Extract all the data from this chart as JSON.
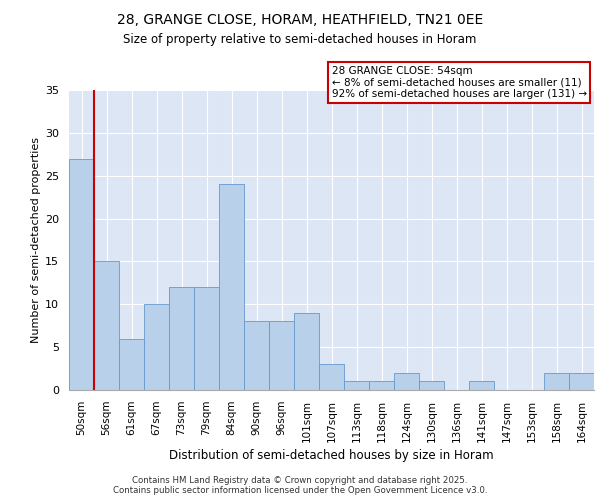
{
  "title1": "28, GRANGE CLOSE, HORAM, HEATHFIELD, TN21 0EE",
  "title2": "Size of property relative to semi-detached houses in Horam",
  "xlabel": "Distribution of semi-detached houses by size in Horam",
  "ylabel": "Number of semi-detached properties",
  "categories": [
    "50sqm",
    "56sqm",
    "61sqm",
    "67sqm",
    "73sqm",
    "79sqm",
    "84sqm",
    "90sqm",
    "96sqm",
    "101sqm",
    "107sqm",
    "113sqm",
    "118sqm",
    "124sqm",
    "130sqm",
    "136sqm",
    "141sqm",
    "147sqm",
    "153sqm",
    "158sqm",
    "164sqm"
  ],
  "values": [
    27,
    15,
    6,
    10,
    12,
    12,
    24,
    8,
    8,
    9,
    3,
    1,
    1,
    2,
    1,
    0,
    1,
    0,
    0,
    2,
    2
  ],
  "bar_color": "#b8d0ea",
  "bar_edge_color": "#6699cc",
  "annotation_text": "28 GRANGE CLOSE: 54sqm\n← 8% of semi-detached houses are smaller (11)\n92% of semi-detached houses are larger (131) →",
  "vline_color": "#cc0000",
  "ylim": [
    0,
    35
  ],
  "yticks": [
    0,
    5,
    10,
    15,
    20,
    25,
    30,
    35
  ],
  "bg_color": "#dce6f5",
  "footer1": "Contains HM Land Registry data © Crown copyright and database right 2025.",
  "footer2": "Contains public sector information licensed under the Open Government Licence v3.0."
}
